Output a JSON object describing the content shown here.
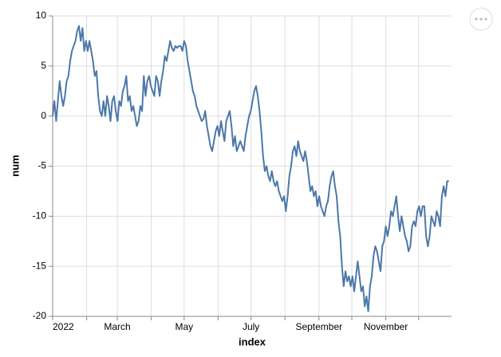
{
  "chart_data": {
    "type": "line",
    "x_label": "index",
    "y_label": "num",
    "color": "#4c78a8",
    "grid": true,
    "xlim": [
      0,
      364
    ],
    "ylim": [
      -20,
      10
    ],
    "xticks": [
      {
        "value": 0,
        "label": "2022"
      },
      {
        "value": 59,
        "label": "March"
      },
      {
        "value": 120,
        "label": "May"
      },
      {
        "value": 181,
        "label": "July"
      },
      {
        "value": 243,
        "label": "September"
      },
      {
        "value": 304,
        "label": "November"
      }
    ],
    "xminor": [
      31,
      90,
      151,
      212,
      273,
      334
    ],
    "yticks": [
      -20,
      -15,
      -10,
      -5,
      0,
      5,
      10
    ],
    "x": [
      0,
      1.6,
      3.2,
      4.8,
      6.4,
      8,
      9.6,
      11.2,
      12.8,
      14.4,
      16,
      17.6,
      19.2,
      20.8,
      22.4,
      24,
      25.6,
      27.2,
      28.8,
      30.4,
      32,
      33.6,
      35.2,
      36.8,
      38.4,
      40,
      41.6,
      43.2,
      44.8,
      46.4,
      48,
      49.6,
      51.2,
      52.8,
      54.4,
      56,
      57.6,
      59.2,
      60.8,
      62.4,
      64,
      65.6,
      67.2,
      68.8,
      70.4,
      72,
      73.6,
      75.2,
      76.8,
      78.4,
      80,
      81.6,
      83.2,
      84.8,
      86.4,
      88,
      89.6,
      91.2,
      92.8,
      94.4,
      96,
      97.6,
      99.2,
      100.8,
      102.4,
      104,
      105.6,
      107.2,
      108.8,
      110.4,
      112,
      113.6,
      115.2,
      116.8,
      118.4,
      120,
      121.6,
      123.2,
      124.8,
      126.4,
      128,
      129.6,
      131.2,
      132.8,
      134.4,
      136,
      137.6,
      139.2,
      140.8,
      142.4,
      144,
      145.6,
      147.2,
      148.8,
      150.4,
      152,
      153.6,
      155.2,
      156.8,
      158.4,
      160,
      161.6,
      163.2,
      164.8,
      166.4,
      168,
      169.6,
      171.2,
      172.8,
      174.4,
      176,
      177.6,
      179.2,
      180.8,
      182.4,
      184,
      185.6,
      187.2,
      188.8,
      190.4,
      192,
      193.6,
      195.2,
      196.8,
      198.4,
      200,
      201.6,
      203.2,
      204.8,
      206.4,
      208,
      209.6,
      211.2,
      212.8,
      214.4,
      216,
      217.6,
      219.2,
      220.8,
      222.4,
      224,
      225.6,
      227.2,
      228.8,
      230.4,
      232,
      233.6,
      235.2,
      236.8,
      238.4,
      240,
      241.6,
      243.2,
      244.8,
      246.4,
      248,
      249.6,
      251.2,
      252.8,
      254.4,
      256,
      257.6,
      259.2,
      260.8,
      262.4,
      264,
      265.6,
      267.2,
      268.8,
      270.4,
      272,
      273.6,
      275.2,
      276.8,
      278.4,
      280,
      281.6,
      283.2,
      284.8,
      286.4,
      288,
      289.6,
      291.2,
      292.8,
      294.4,
      296,
      297.6,
      299.2,
      300.8,
      302.4,
      304,
      305.6,
      307.2,
      308.8,
      310.4,
      312,
      313.6,
      315.2,
      316.8,
      318.4,
      320,
      321.6,
      323.2,
      324.8,
      326.4,
      328,
      329.6,
      331.2,
      332.8,
      334.4,
      336,
      337.6,
      339.2,
      340.8,
      342.4,
      344,
      345.6,
      347.2,
      348.8,
      350.4,
      352,
      353.6,
      355.2,
      356.8,
      358.4,
      360,
      361.6
    ],
    "values": [
      0,
      1.5,
      -0.5,
      1.5,
      3.5,
      2,
      1,
      2,
      3.5,
      4,
      5.5,
      6.5,
      7,
      7.5,
      8.5,
      9,
      7.5,
      8.8,
      6.5,
      7.5,
      6.5,
      7.5,
      6.5,
      5.5,
      4,
      4.5,
      2,
      0.5,
      0,
      1.5,
      0,
      2,
      1,
      -0.5,
      1.5,
      2,
      0.5,
      -0.5,
      1.5,
      1,
      2.5,
      3,
      4,
      1.5,
      2,
      0.5,
      1,
      0,
      -1,
      -0.5,
      1,
      0.5,
      4,
      2,
      3.5,
      4,
      3,
      2.5,
      2,
      4,
      3.5,
      2,
      3.5,
      4.5,
      6,
      5.5,
      6.5,
      7.5,
      6.8,
      6.5,
      7,
      6.8,
      7,
      7,
      6.5,
      7.5,
      7,
      5.5,
      4.5,
      3.5,
      2.5,
      2,
      1,
      0.5,
      0,
      -0.5,
      -0.3,
      0.5,
      -1,
      -2,
      -3,
      -3.5,
      -2.5,
      -1.5,
      -1,
      -2,
      -0.5,
      -1.5,
      -2.5,
      -0.5,
      0,
      0.5,
      -1,
      -3,
      -2,
      -3.5,
      -3,
      -2.5,
      -3,
      -3.5,
      -2,
      -1,
      0,
      0.5,
      1.5,
      2.5,
      3,
      2,
      0.5,
      -1.5,
      -4,
      -5.5,
      -5,
      -6,
      -6.5,
      -5.5,
      -6.5,
      -7,
      -6.5,
      -7.5,
      -8,
      -8.5,
      -8,
      -9.5,
      -8,
      -6,
      -5,
      -3.5,
      -3,
      -4,
      -2.5,
      -3.5,
      -4,
      -4.5,
      -3.5,
      -4.5,
      -6,
      -7.5,
      -7,
      -8,
      -7.5,
      -9,
      -8,
      -9,
      -9.5,
      -10,
      -9,
      -8.5,
      -7,
      -6,
      -5.5,
      -7,
      -8,
      -10.5,
      -12,
      -15,
      -17,
      -15.5,
      -16.5,
      -16,
      -17,
      -16,
      -17.5,
      -16,
      -14.5,
      -16,
      -17.5,
      -17,
      -19,
      -18,
      -19.5,
      -17,
      -16,
      -14,
      -13,
      -13.5,
      -14.5,
      -15.5,
      -13,
      -12.5,
      -11,
      -12,
      -11,
      -9.5,
      -10,
      -9,
      -8,
      -10,
      -11.5,
      -10,
      -11,
      -12,
      -12.5,
      -13.5,
      -13,
      -11,
      -10.5,
      -11,
      -9.5,
      -9,
      -10,
      -9,
      -9,
      -12,
      -13,
      -12,
      -10,
      -10.5,
      -11,
      -9.5,
      -10,
      -11,
      -8,
      -7,
      -8,
      -6.5,
      -6.5
    ]
  }
}
